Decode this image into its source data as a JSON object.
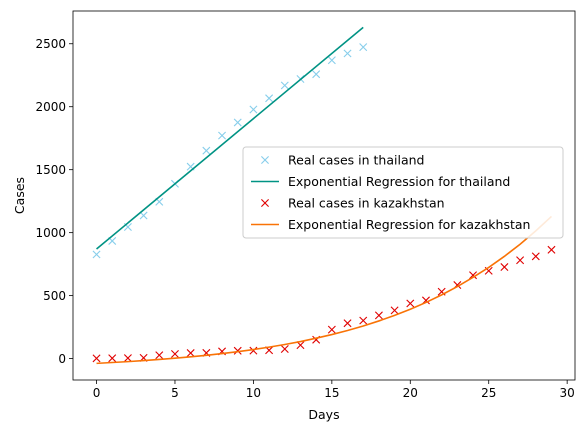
{
  "chart_data": {
    "type": "line",
    "xlabel": "Days",
    "ylabel": "Cases",
    "xlim": [
      -1.5,
      30.5
    ],
    "ylim": [
      -170,
      2760
    ],
    "xticks": [
      0,
      5,
      10,
      15,
      20,
      25,
      30
    ],
    "yticks": [
      0,
      500,
      1000,
      1500,
      2000,
      2500
    ],
    "grid": false,
    "legend_position": "center-right",
    "series": [
      {
        "name": "Real cases in thailand",
        "style": "markers",
        "marker": "x",
        "color": "#87ceeb",
        "x": [
          0,
          1,
          2,
          3,
          4,
          5,
          6,
          7,
          8,
          9,
          10,
          11,
          12,
          13,
          14,
          15,
          16,
          17
        ],
        "y": [
          827,
          934,
          1045,
          1136,
          1245,
          1388,
          1524,
          1651,
          1771,
          1875,
          1978,
          2067,
          2169,
          2220,
          2258,
          2369,
          2423,
          2473
        ]
      },
      {
        "name": "Exponential Regression for thailand",
        "style": "line",
        "color": "#009384",
        "x": [
          0,
          17
        ],
        "y": [
          870,
          2630
        ]
      },
      {
        "name": "Real cases in kazakhstan",
        "style": "markers",
        "marker": "x",
        "color": "#e00000",
        "x": [
          0,
          1,
          2,
          3,
          4,
          5,
          6,
          7,
          8,
          9,
          10,
          11,
          12,
          13,
          14,
          15,
          16,
          17,
          18,
          19,
          20,
          21,
          22,
          23,
          24,
          25,
          26,
          27,
          28,
          29
        ],
        "y": [
          2,
          3,
          4,
          6,
          27,
          37,
          44,
          45,
          57,
          62,
          63,
          66,
          76,
          107,
          150,
          230,
          281,
          302,
          343,
          383,
          438,
          462,
          531,
          584,
          662,
          697,
          727,
          781,
          812,
          864
        ]
      },
      {
        "name": "Exponential Regression for kazakhstan",
        "style": "line",
        "color": "#f97306",
        "x": [
          0,
          1,
          2,
          3,
          4,
          5,
          6,
          7,
          8,
          9,
          10,
          11,
          12,
          13,
          14,
          15,
          16,
          17,
          18,
          19,
          20,
          21,
          22,
          23,
          24,
          25,
          26,
          27,
          28,
          29
        ],
        "y": [
          -38,
          -31,
          -24,
          -16,
          -7,
          3,
          14,
          26,
          40,
          55,
          72,
          91,
          112,
          135,
          162,
          191,
          223,
          259,
          299,
          343,
          392,
          446,
          506,
          572,
          645,
          724,
          812,
          908,
          1014,
          1129
        ]
      }
    ]
  }
}
